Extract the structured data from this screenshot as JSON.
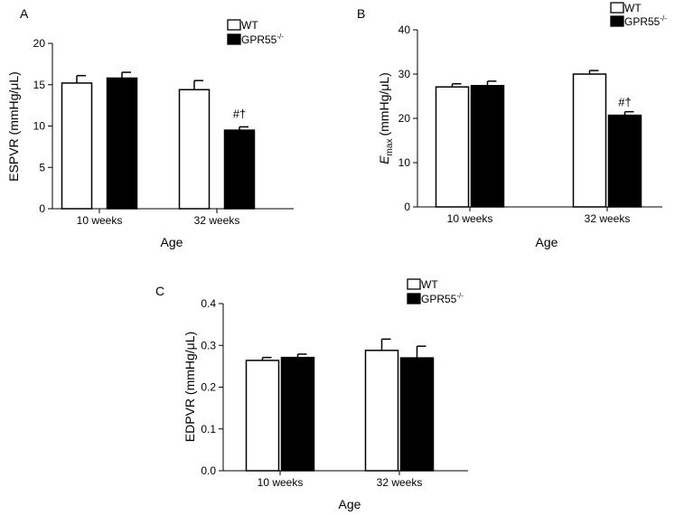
{
  "chart_data": [
    {
      "type": "bar",
      "panel_label": "A",
      "categories": [
        "10 weeks",
        "32 weeks"
      ],
      "xlabel": "Age",
      "ylabel": "ESPVR (mmHg/μL)",
      "ylim": [
        0,
        20
      ],
      "yticks": [
        "0",
        "5",
        "10",
        "15",
        "20"
      ],
      "legend": {
        "placement": "top-right",
        "entries": [
          "WT",
          "GPR55"
        ],
        "superscript": "-/-"
      },
      "series": [
        {
          "name": "WT",
          "color": "#ffffff",
          "values": [
            15.2,
            14.4
          ],
          "errors": [
            0.9,
            1.1
          ]
        },
        {
          "name": "GPR55-/-",
          "color": "#000000",
          "values": [
            15.8,
            9.5
          ],
          "errors": [
            0.7,
            0.4
          ]
        }
      ],
      "annotations": [
        {
          "category": "32 weeks",
          "series": "GPR55-/-",
          "text": "#†"
        }
      ]
    },
    {
      "type": "bar",
      "panel_label": "B",
      "categories": [
        "10 weeks",
        "32 weeks"
      ],
      "xlabel": "Age",
      "ylabel": "(mmHg/μL)",
      "ylabel_main": "E",
      "ylabel_sub": "max",
      "ylim": [
        0,
        40
      ],
      "yticks": [
        "0",
        "10",
        "20",
        "30",
        "40"
      ],
      "legend": {
        "placement": "top-right",
        "entries": [
          "WT",
          "GPR55"
        ],
        "superscript": "-/-"
      },
      "series": [
        {
          "name": "WT",
          "color": "#ffffff",
          "values": [
            27.1,
            30.0
          ],
          "errors": [
            0.7,
            0.8
          ]
        },
        {
          "name": "GPR55-/-",
          "color": "#000000",
          "values": [
            27.4,
            20.7
          ],
          "errors": [
            1.0,
            0.8
          ]
        }
      ],
      "annotations": [
        {
          "category": "32 weeks",
          "series": "GPR55-/-",
          "text": "#†"
        }
      ]
    },
    {
      "type": "bar",
      "panel_label": "C",
      "categories": [
        "10 weeks",
        "32 weeks"
      ],
      "xlabel": "Age",
      "ylabel": "EDPVR (mmHg/μL)",
      "ylim": [
        0,
        0.4
      ],
      "yticks": [
        "0.0",
        "0.1",
        "0.2",
        "0.3",
        "0.4"
      ],
      "legend": {
        "placement": "top-right",
        "entries": [
          "WT",
          "GPR55"
        ],
        "superscript": "-/-"
      },
      "series": [
        {
          "name": "WT",
          "color": "#ffffff",
          "values": [
            0.264,
            0.288
          ],
          "errors": [
            0.007,
            0.027
          ]
        },
        {
          "name": "GPR55-/-",
          "color": "#000000",
          "values": [
            0.271,
            0.27
          ],
          "errors": [
            0.008,
            0.028
          ]
        }
      ],
      "annotations": []
    }
  ]
}
